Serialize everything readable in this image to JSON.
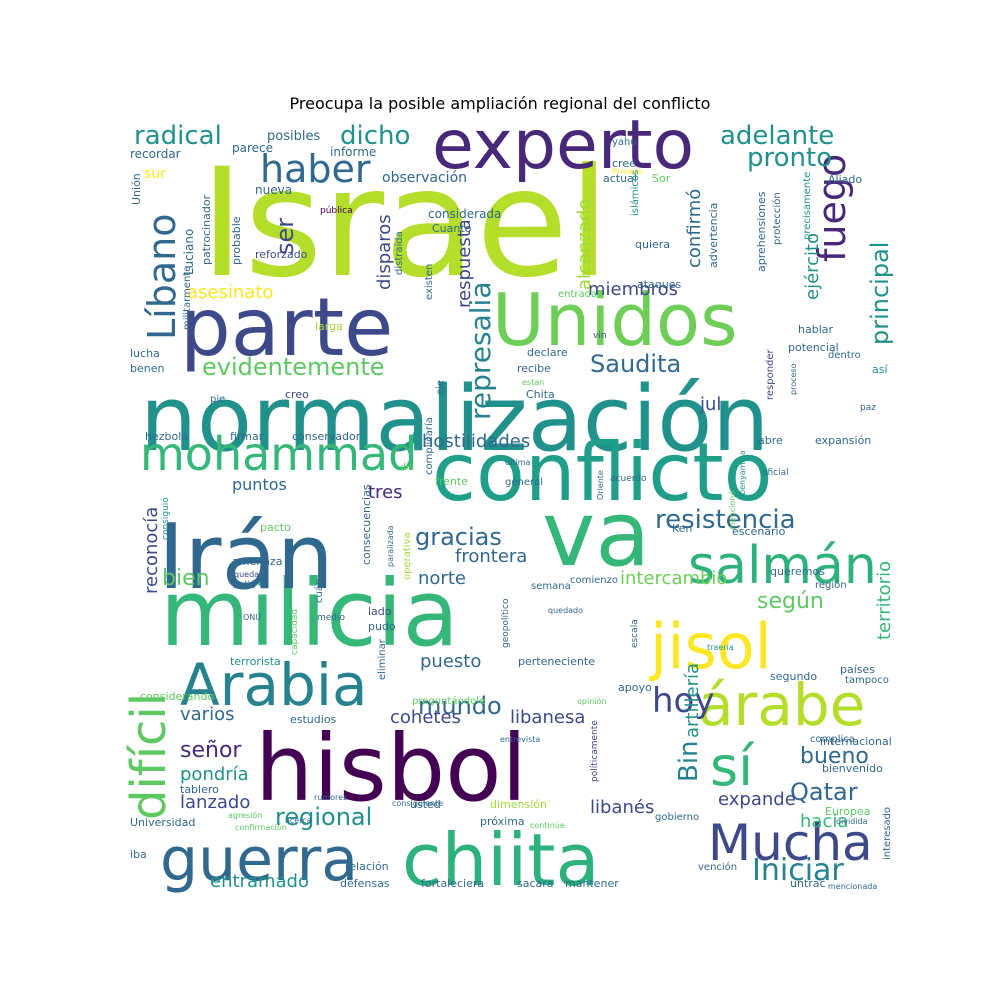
{
  "chart_data": {
    "type": "wordcloud",
    "title": "Preocupa la posible ampliación regional del conflicto",
    "words": [
      {
        "text": "Israel",
        "size": 150,
        "color": "#b5de2b"
      },
      {
        "text": "normalización",
        "size": 90,
        "color": "#21918c"
      },
      {
        "text": "hisbol",
        "size": 92,
        "color": "#440154"
      },
      {
        "text": "milicia",
        "size": 92,
        "color": "#35b779"
      },
      {
        "text": "Irán",
        "size": 90,
        "color": "#31688e"
      },
      {
        "text": "conflicto",
        "size": 80,
        "color": "#1f9e89"
      },
      {
        "text": "parte",
        "size": 80,
        "color": "#3e4989"
      },
      {
        "text": "Unidos",
        "size": 72,
        "color": "#6ece58"
      },
      {
        "text": "va",
        "size": 90,
        "color": "#35b779"
      },
      {
        "text": "experto",
        "size": 68,
        "color": "#482878"
      },
      {
        "text": "chiita",
        "size": 72,
        "color": "#2db27d"
      },
      {
        "text": "guerra",
        "size": 60,
        "color": "#31688e"
      },
      {
        "text": "Arabia",
        "size": 58,
        "color": "#26828e"
      },
      {
        "text": "jisol",
        "size": 62,
        "color": "#fde725"
      },
      {
        "text": "árabe",
        "size": 58,
        "color": "#b5de2b"
      },
      {
        "text": "salmán",
        "size": 52,
        "color": "#2db27d"
      },
      {
        "text": "Mucha",
        "size": 50,
        "color": "#3e4989"
      },
      {
        "text": "mohammad",
        "size": 46,
        "color": "#35b779"
      },
      {
        "text": "difícil",
        "size": 48,
        "color": "#5ec962"
      },
      {
        "text": "sí",
        "size": 54,
        "color": "#35b779"
      },
      {
        "text": "haber",
        "size": 38,
        "color": "#31688e"
      },
      {
        "text": "Líbano",
        "size": 38,
        "color": "#31688e"
      },
      {
        "text": "fuego",
        "size": 38,
        "color": "#482878"
      },
      {
        "text": "hoy",
        "size": 34,
        "color": "#3e4989"
      },
      {
        "text": "Iniciar",
        "size": 30,
        "color": "#26828e"
      },
      {
        "text": "represalia",
        "size": 28,
        "color": "#26828e"
      },
      {
        "text": "evidentemente",
        "size": 24,
        "color": "#5ec962"
      },
      {
        "text": "Saudita",
        "size": 24,
        "color": "#31688e"
      },
      {
        "text": "regional",
        "size": 24,
        "color": "#21918c"
      },
      {
        "text": "gracias",
        "size": 24,
        "color": "#31688e"
      },
      {
        "text": "resistencia",
        "size": 26,
        "color": "#31688e"
      },
      {
        "text": "mundo",
        "size": 24,
        "color": "#31688e"
      },
      {
        "text": "Qatar",
        "size": 24,
        "color": "#31688e"
      },
      {
        "text": "bueno",
        "size": 22,
        "color": "#31688e"
      },
      {
        "text": "radical",
        "size": 26,
        "color": "#21918c"
      },
      {
        "text": "dicho",
        "size": 26,
        "color": "#21918c"
      },
      {
        "text": "adelante",
        "size": 26,
        "color": "#21918c"
      },
      {
        "text": "pronto",
        "size": 26,
        "color": "#21918c"
      },
      {
        "text": "principal",
        "size": 24,
        "color": "#21918c"
      },
      {
        "text": "ser",
        "size": 24,
        "color": "#3e4989"
      },
      {
        "text": "Bin",
        "size": 26,
        "color": "#26828e"
      },
      {
        "text": "señor",
        "size": 22,
        "color": "#482878"
      },
      {
        "text": "según",
        "size": 22,
        "color": "#5ec962"
      },
      {
        "text": "bien",
        "size": 22,
        "color": "#5ec962"
      },
      {
        "text": "entramado",
        "size": 18,
        "color": "#21918c"
      },
      {
        "text": "cohetes",
        "size": 18,
        "color": "#3e4989"
      },
      {
        "text": "libanesa",
        "size": 18,
        "color": "#3e4989"
      },
      {
        "text": "hostilidades",
        "size": 18,
        "color": "#31688e"
      },
      {
        "text": "frontera",
        "size": 18,
        "color": "#31688e"
      },
      {
        "text": "puesto",
        "size": 18,
        "color": "#31688e"
      },
      {
        "text": "norte",
        "size": 18,
        "color": "#31688e"
      },
      {
        "text": "intercambio",
        "size": 18,
        "color": "#6ece58"
      },
      {
        "text": "territorio",
        "size": 18,
        "color": "#35b779"
      },
      {
        "text": "artillería",
        "size": 18,
        "color": "#21918c"
      },
      {
        "text": "reconocía",
        "size": 18,
        "color": "#3e4989"
      },
      {
        "text": "pondría",
        "size": 18,
        "color": "#21918c"
      },
      {
        "text": "lanzado",
        "size": 18,
        "color": "#3e4989"
      },
      {
        "text": "libanés",
        "size": 18,
        "color": "#3e4989"
      },
      {
        "text": "expande",
        "size": 18,
        "color": "#3e4989"
      },
      {
        "text": "hacia",
        "size": 18,
        "color": "#35b779"
      },
      {
        "text": "varios",
        "size": 18,
        "color": "#31688e"
      },
      {
        "text": "miembros",
        "size": 18,
        "color": "#3e4989"
      },
      {
        "text": "ejército",
        "size": 18,
        "color": "#21918c"
      },
      {
        "text": "confirmó",
        "size": 18,
        "color": "#31688e"
      },
      {
        "text": "disparos",
        "size": 18,
        "color": "#3e4989"
      },
      {
        "text": "respuesta",
        "size": 18,
        "color": "#3e4989"
      },
      {
        "text": "alcanzado",
        "size": 18,
        "color": "#a0da39"
      },
      {
        "text": "asesinato",
        "size": 18,
        "color": "#fde725"
      },
      {
        "text": "jul",
        "size": 18,
        "color": "#3e4989"
      },
      {
        "text": "tres",
        "size": 18,
        "color": "#482878"
      },
      {
        "text": "puntos",
        "size": 16,
        "color": "#31688e"
      },
      {
        "text": "observación",
        "size": 14,
        "color": "#31688e"
      },
      {
        "text": "sur",
        "size": 14,
        "color": "#fde725"
      },
      {
        "text": "posibles",
        "size": 13,
        "color": "#31688e"
      },
      {
        "text": "recordar",
        "size": 12,
        "color": "#31688e"
      },
      {
        "text": "parece",
        "size": 12,
        "color": "#31688e"
      },
      {
        "text": "informe",
        "size": 12,
        "color": "#31688e"
      },
      {
        "text": "nueva",
        "size": 12,
        "color": "#31688e"
      },
      {
        "text": "Luciano",
        "size": 12,
        "color": "#31688e"
      },
      {
        "text": "patrocinador",
        "size": 11,
        "color": "#31688e"
      },
      {
        "text": "probable",
        "size": 11,
        "color": "#31688e"
      },
      {
        "text": "reforzado",
        "size": 11,
        "color": "#3e4989"
      },
      {
        "text": "considerada",
        "size": 12,
        "color": "#31688e"
      },
      {
        "text": "Cuanto",
        "size": 11,
        "color": "#31688e"
      },
      {
        "text": "existen",
        "size": 10,
        "color": "#31688e"
      },
      {
        "text": "distraída",
        "size": 10,
        "color": "#31688e"
      },
      {
        "text": "pública",
        "size": 9,
        "color": "#440154"
      },
      {
        "text": "Unión",
        "size": 11,
        "color": "#31688e"
      },
      {
        "text": "militarmente",
        "size": 10,
        "color": "#31688e"
      },
      {
        "text": "larga",
        "size": 11,
        "color": "#a0da39"
      },
      {
        "text": "lucha",
        "size": 11,
        "color": "#31688e"
      },
      {
        "text": "benen",
        "size": 11,
        "color": "#31688e"
      },
      {
        "text": "pie",
        "size": 10,
        "color": "#31688e"
      },
      {
        "text": "creo",
        "size": 11,
        "color": "#3e4989"
      },
      {
        "text": "hezbolá",
        "size": 11,
        "color": "#31688e"
      },
      {
        "text": "firmar",
        "size": 11,
        "color": "#31688e"
      },
      {
        "text": "conservador",
        "size": 11,
        "color": "#31688e"
      },
      {
        "text": "complicaría",
        "size": 10,
        "color": "#31688e"
      },
      {
        "text": "día",
        "size": 9,
        "color": "#5ec962"
      },
      {
        "text": "eje",
        "size": 10,
        "color": "#31688e"
      },
      {
        "text": "declare",
        "size": 11,
        "color": "#31688e"
      },
      {
        "text": "recibe",
        "size": 11,
        "color": "#31688e"
      },
      {
        "text": "Chita",
        "size": 11,
        "color": "#31688e"
      },
      {
        "text": "estan",
        "size": 8,
        "color": "#5ec962"
      },
      {
        "text": "entrada",
        "size": 10,
        "color": "#5ec962"
      },
      {
        "text": "ataques",
        "size": 11,
        "color": "#31688e"
      },
      {
        "text": "vin",
        "size": 9,
        "color": "#3e4989"
      },
      {
        "text": "yahu",
        "size": 10,
        "color": "#31688e"
      },
      {
        "text": "firmado",
        "size": 8,
        "color": "#fde725"
      },
      {
        "text": "cree",
        "size": 11,
        "color": "#31688e"
      },
      {
        "text": "Sor",
        "size": 11,
        "color": "#5ec962"
      },
      {
        "text": "actual",
        "size": 11,
        "color": "#31688e"
      },
      {
        "text": "islámicos",
        "size": 10,
        "color": "#21918c"
      },
      {
        "text": "advertencia",
        "size": 11,
        "color": "#31688e"
      },
      {
        "text": "quiera",
        "size": 11,
        "color": "#31688e"
      },
      {
        "text": "aprehensiones",
        "size": 11,
        "color": "#31688e"
      },
      {
        "text": "protección",
        "size": 10,
        "color": "#31688e"
      },
      {
        "text": "precisamente",
        "size": 10,
        "color": "#21918c"
      },
      {
        "text": "Aliado",
        "size": 11,
        "color": "#31688e"
      },
      {
        "text": "hablar",
        "size": 11,
        "color": "#31688e"
      },
      {
        "text": "potencial",
        "size": 11,
        "color": "#31688e"
      },
      {
        "text": "dentro",
        "size": 10,
        "color": "#31688e"
      },
      {
        "text": "responder",
        "size": 10,
        "color": "#3e4989"
      },
      {
        "text": "proceso",
        "size": 8,
        "color": "#31688e"
      },
      {
        "text": "así",
        "size": 11,
        "color": "#21918c"
      },
      {
        "text": "paz",
        "size": 9,
        "color": "#31688e"
      },
      {
        "text": "abre",
        "size": 11,
        "color": "#31688e"
      },
      {
        "text": "expansión",
        "size": 11,
        "color": "#31688e"
      },
      {
        "text": "benyamina",
        "size": 8,
        "color": "#21918c"
      },
      {
        "text": "oficial",
        "size": 9,
        "color": "#31688e"
      },
      {
        "text": "acuerdo",
        "size": 9,
        "color": "#31688e"
      },
      {
        "text": "Oriente",
        "size": 8,
        "color": "#31688e"
      },
      {
        "text": "general",
        "size": 10,
        "color": "#31688e"
      },
      {
        "text": "frente",
        "size": 11,
        "color": "#5ec962"
      },
      {
        "text": "última",
        "size": 8,
        "color": "#31688e"
      },
      {
        "text": "mencionó",
        "size": 8,
        "color": "#5ec962"
      },
      {
        "text": "Ken",
        "size": 11,
        "color": "#31688e"
      },
      {
        "text": "escenario",
        "size": 11,
        "color": "#31688e"
      },
      {
        "text": "queremos",
        "size": 11,
        "color": "#31688e"
      },
      {
        "text": "región",
        "size": 10,
        "color": "#31688e"
      },
      {
        "text": "comienzo",
        "size": 10,
        "color": "#31688e"
      },
      {
        "text": "semana",
        "size": 10,
        "color": "#31688e"
      },
      {
        "text": "geopolítico",
        "size": 9,
        "color": "#31688e"
      },
      {
        "text": "quedado",
        "size": 8,
        "color": "#31688e"
      },
      {
        "text": "escala",
        "size": 9,
        "color": "#31688e"
      },
      {
        "text": "consecuencias",
        "size": 11,
        "color": "#31688e"
      },
      {
        "text": "operativa",
        "size": 10,
        "color": "#a0da39"
      },
      {
        "text": "paralizada",
        "size": 8,
        "color": "#31688e"
      },
      {
        "text": "amenaza",
        "size": 11,
        "color": "#31688e"
      },
      {
        "text": "pacto",
        "size": 11,
        "color": "#5ec962"
      },
      {
        "text": "consiguió",
        "size": 9,
        "color": "#21918c"
      },
      {
        "text": "queda",
        "size": 8,
        "color": "#3e4989"
      },
      {
        "text": "salió",
        "size": 10,
        "color": "#31688e"
      },
      {
        "text": "cuán",
        "size": 10,
        "color": "#31688e"
      },
      {
        "text": "capacidad",
        "size": 9,
        "color": "#5ec962"
      },
      {
        "text": "ONU",
        "size": 8,
        "color": "#31688e"
      },
      {
        "text": "medio",
        "size": 9,
        "color": "#31688e"
      },
      {
        "text": "lado",
        "size": 11,
        "color": "#3e4989"
      },
      {
        "text": "pudo",
        "size": 11,
        "color": "#31688e"
      },
      {
        "text": "terrorista",
        "size": 11,
        "color": "#21918c"
      },
      {
        "text": "eliminar",
        "size": 10,
        "color": "#31688e"
      },
      {
        "text": "perteneciente",
        "size": 11,
        "color": "#31688e"
      },
      {
        "text": "segundo",
        "size": 11,
        "color": "#31688e"
      },
      {
        "text": "países",
        "size": 11,
        "color": "#31688e"
      },
      {
        "text": "tampoco",
        "size": 10,
        "color": "#31688e"
      },
      {
        "text": "traería",
        "size": 8,
        "color": "#21918c"
      },
      {
        "text": "apoyo",
        "size": 11,
        "color": "#31688e"
      },
      {
        "text": "preguntándole",
        "size": 10,
        "color": "#5ec962"
      },
      {
        "text": "opinión",
        "size": 8,
        "color": "#5ec962"
      },
      {
        "text": "considerando",
        "size": 11,
        "color": "#5ec962"
      },
      {
        "text": "estudios",
        "size": 11,
        "color": "#31688e"
      },
      {
        "text": "entrevista",
        "size": 8,
        "color": "#31688e"
      },
      {
        "text": "políticamente",
        "size": 9,
        "color": "#3e4989"
      },
      {
        "text": "complica",
        "size": 10,
        "color": "#31688e"
      },
      {
        "text": "internacional",
        "size": 11,
        "color": "#31688e"
      },
      {
        "text": "bienvenido",
        "size": 11,
        "color": "#31688e"
      },
      {
        "text": "consiguiente",
        "size": 8,
        "color": "#31688e"
      },
      {
        "text": "tablero",
        "size": 11,
        "color": "#31688e"
      },
      {
        "text": "rumores",
        "size": 8,
        "color": "#31688e"
      },
      {
        "text": "agresión",
        "size": 8,
        "color": "#5ec962"
      },
      {
        "text": "acerca",
        "size": 8,
        "color": "#31688e"
      },
      {
        "text": "confirmación",
        "size": 8,
        "color": "#5ec962"
      },
      {
        "text": "Universidad",
        "size": 11,
        "color": "#31688e"
      },
      {
        "text": "usted",
        "size": 11,
        "color": "#31688e"
      },
      {
        "text": "dimensión",
        "size": 11,
        "color": "#a0da39"
      },
      {
        "text": "próxima",
        "size": 11,
        "color": "#31688e"
      },
      {
        "text": "continúe",
        "size": 8,
        "color": "#5ec962"
      },
      {
        "text": "gobierno",
        "size": 10,
        "color": "#31688e"
      },
      {
        "text": "Europea",
        "size": 11,
        "color": "#5ec962"
      },
      {
        "text": "dividida",
        "size": 8,
        "color": "#31688e"
      },
      {
        "text": "interesado",
        "size": 10,
        "color": "#31688e"
      },
      {
        "text": "iba",
        "size": 11,
        "color": "#31688e"
      },
      {
        "text": "relación",
        "size": 11,
        "color": "#31688e"
      },
      {
        "text": "vención",
        "size": 10,
        "color": "#31688e"
      },
      {
        "text": "defensas",
        "size": 11,
        "color": "#31688e"
      },
      {
        "text": "fortaleciera",
        "size": 11,
        "color": "#31688e"
      },
      {
        "text": "sacara",
        "size": 11,
        "color": "#31688e"
      },
      {
        "text": "mantener",
        "size": 11,
        "color": "#31688e"
      },
      {
        "text": "untrac",
        "size": 11,
        "color": "#31688e"
      },
      {
        "text": "mencionada",
        "size": 8,
        "color": "#31688e"
      }
    ]
  }
}
